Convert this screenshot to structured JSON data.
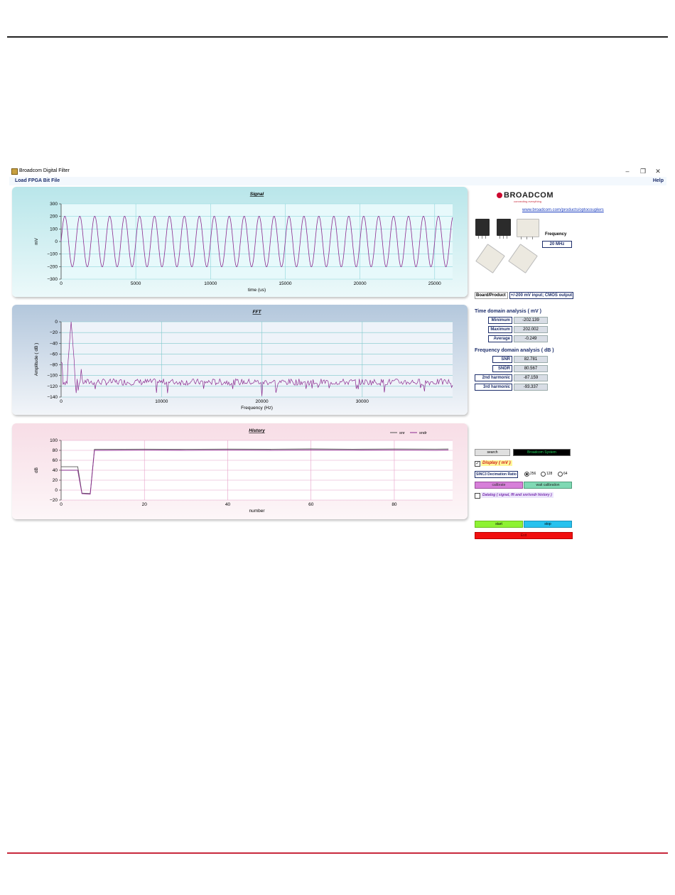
{
  "window": {
    "title": "Broadcom Digital Filter",
    "controls": [
      "–",
      "❐",
      "✕"
    ]
  },
  "menu": {
    "left": "Load FPGA Bit File",
    "right": "Help"
  },
  "sidebar": {
    "logo": "BROADCOM",
    "tagline": "connecting everything",
    "url": "www.broadcom.com/products/optocouplers",
    "frequency_label": "Frequency",
    "frequency_value": "20 MHz",
    "chips": [
      "ACPL-C79",
      "ACPL-C79",
      "ACPL-C797T",
      "ACPL-C87",
      "ACPL-C87"
    ],
    "board_label": "Board/Product",
    "board_value": "+/-200 mV input; CMOS output",
    "time_title": "Time domain analysis   ( mV )",
    "time_metrics": [
      {
        "label": "Minimum",
        "value": "-202.139"
      },
      {
        "label": "Maximum",
        "value": "202.002"
      },
      {
        "label": "Average",
        "value": "-0.249"
      }
    ],
    "freq_title": "Frequency domain analysis  ( dB )",
    "freq_metrics": [
      {
        "label": "SNR",
        "value": "82.781"
      },
      {
        "label": "SNDR",
        "value": "80.567"
      },
      {
        "label": "2nd harmonic",
        "value": "-87.159"
      },
      {
        "label": "3rd harmonic",
        "value": "-93.337"
      }
    ],
    "search_label": "search",
    "system_label": "Broadcom System",
    "display_label": "Display  ( mV )",
    "display_checked": true,
    "sinc_label": "SINC3 Decimation Ratio",
    "ratios": [
      "256",
      "128",
      "64"
    ],
    "ratio_selected": "256",
    "calibrate_label": "calibrate",
    "wait_calibration_label": "wait calibration",
    "datalog_label": "Datalog  ( signal, fft and snr/sndr history )",
    "datalog_checked": false,
    "start_label": "start",
    "stop_label": "stop",
    "exit_label": "Exit",
    "colors": {
      "start": "#8ef233",
      "stop": "#27c2ee",
      "exit": "#f01010",
      "calibrate": "#d77fd9",
      "wait": "#7fd9b4"
    }
  },
  "chart_data": [
    {
      "type": "line",
      "title": "Signal",
      "xlabel": "time (us)",
      "ylabel": "mV",
      "xlim": [
        0,
        26200
      ],
      "ylim": [
        -300,
        300
      ],
      "xticks": [
        0,
        5000,
        10000,
        15000,
        20000,
        25000
      ],
      "yticks": [
        300,
        200,
        100,
        0,
        -100,
        -200,
        -300
      ],
      "grid": true,
      "series": [
        {
          "amplitude": 202,
          "period_us": 1000,
          "color": "#8b2a8f"
        }
      ]
    },
    {
      "type": "line",
      "title": "FFT",
      "xlabel": "Frequency (Hz)",
      "ylabel": "Amplitude ( dB )",
      "xlim": [
        0,
        39000
      ],
      "ylim": [
        -140,
        0
      ],
      "xticks": [
        0,
        10000,
        20000,
        30000
      ],
      "yticks": [
        0,
        -20,
        -40,
        -60,
        -80,
        -100,
        -120,
        -140
      ],
      "grid": true,
      "series": [
        {
          "peak_hz": 1000,
          "peak_db": 0,
          "noise_floor_db": -112,
          "color": "#8b2a8f"
        }
      ]
    },
    {
      "type": "line",
      "title": "History",
      "xlabel": "number",
      "ylabel": "dB",
      "xlim": [
        0,
        94
      ],
      "ylim": [
        -20,
        100
      ],
      "xticks": [
        0,
        20,
        40,
        60,
        80
      ],
      "yticks": [
        100,
        80,
        60,
        40,
        20,
        0,
        -20
      ],
      "grid": true,
      "legend": "top-right",
      "series": [
        {
          "name": "snr",
          "color": "#555555",
          "x": [
            0,
            4,
            5,
            7,
            8,
            10,
            20,
            30,
            40,
            50,
            60,
            70,
            80,
            90,
            93
          ],
          "values": [
            47,
            47,
            -6,
            -7,
            82,
            82,
            82.5,
            82,
            82.6,
            82.2,
            82.8,
            82.3,
            82.7,
            82.4,
            82.7
          ]
        },
        {
          "name": "sndr",
          "color": "#8b2a8f",
          "x": [
            0,
            4,
            5,
            7,
            8,
            10,
            20,
            30,
            40,
            50,
            60,
            70,
            80,
            90,
            93
          ],
          "values": [
            40,
            40,
            -7,
            -8,
            80,
            80,
            80.4,
            80.2,
            80.5,
            80.1,
            80.6,
            80.3,
            80.5,
            80.2,
            80.6
          ]
        }
      ]
    }
  ]
}
